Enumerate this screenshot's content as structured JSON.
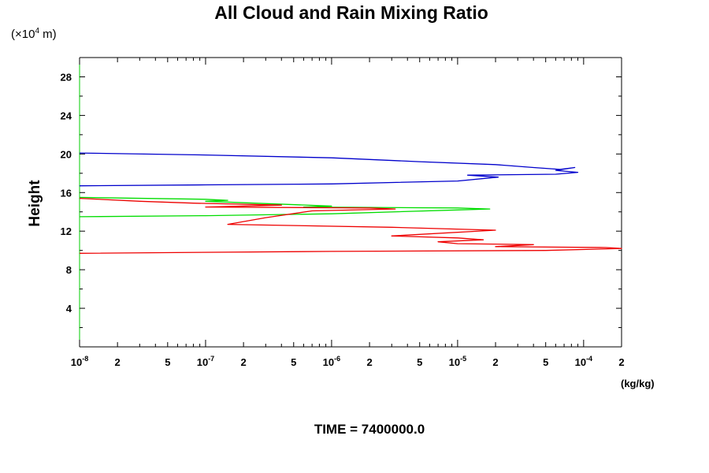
{
  "chart_data": {
    "type": "line",
    "title": "All Cloud and Rain Mixing Ratio",
    "ylabel": "Height",
    "y_unit_prefix": "(×10",
    "y_unit_exp": "4",
    "y_unit_suffix": " m)",
    "xlabel_unit": "(kg/kg)",
    "annotation": "TIME = 7400000.0",
    "x_scale": "log",
    "xlim": [
      1e-08,
      0.0002
    ],
    "ylim": [
      0,
      30
    ],
    "y_ticks": [
      "4",
      "8",
      "12",
      "16",
      "20",
      "24",
      "28"
    ],
    "x_tick_labels": [
      {
        "v": 1e-08,
        "base": "10",
        "exp": "-8"
      },
      {
        "v": 2e-08,
        "base": "2",
        "exp": ""
      },
      {
        "v": 5e-08,
        "base": "5",
        "exp": ""
      },
      {
        "v": 1e-07,
        "base": "10",
        "exp": "-7"
      },
      {
        "v": 2e-07,
        "base": "2",
        "exp": ""
      },
      {
        "v": 5e-07,
        "base": "5",
        "exp": ""
      },
      {
        "v": 1e-06,
        "base": "10",
        "exp": "-6"
      },
      {
        "v": 2e-06,
        "base": "2",
        "exp": ""
      },
      {
        "v": 5e-06,
        "base": "5",
        "exp": ""
      },
      {
        "v": 1e-05,
        "base": "10",
        "exp": "-5"
      },
      {
        "v": 2e-05,
        "base": "2",
        "exp": ""
      },
      {
        "v": 5e-05,
        "base": "5",
        "exp": ""
      },
      {
        "v": 0.0001,
        "base": "10",
        "exp": "-4"
      },
      {
        "v": 0.0002,
        "base": "2",
        "exp": ""
      }
    ],
    "series": [
      {
        "name": "blue profile",
        "color": "#0000cc",
        "points": [
          [
            1e-08,
            20.1
          ],
          [
            1e-07,
            19.9
          ],
          [
            1e-06,
            19.6
          ],
          [
            5e-06,
            19.2
          ],
          [
            2e-05,
            18.9
          ],
          [
            4e-05,
            18.6
          ],
          [
            6.5e-05,
            18.4
          ],
          [
            8.5e-05,
            18.6
          ],
          [
            6e-05,
            18.3
          ],
          [
            9e-05,
            18.1
          ],
          [
            6e-05,
            17.9
          ],
          [
            1.2e-05,
            17.8
          ],
          [
            2.1e-05,
            17.6
          ],
          [
            1e-05,
            17.2
          ],
          [
            1e-06,
            16.9
          ],
          [
            1e-07,
            16.8
          ],
          [
            1e-08,
            16.7
          ]
        ]
      },
      {
        "name": "green profile",
        "color": "#00dd00",
        "points": [
          [
            1e-08,
            15.5
          ],
          [
            1e-07,
            15.3
          ],
          [
            1.5e-07,
            15.2
          ],
          [
            1e-07,
            15.1
          ],
          [
            1e-06,
            14.6
          ],
          [
            6e-07,
            14.5
          ],
          [
            1e-05,
            14.4
          ],
          [
            1.8e-05,
            14.3
          ],
          [
            1e-05,
            14.2
          ],
          [
            1e-06,
            13.8
          ],
          [
            1e-07,
            13.6
          ],
          [
            1e-08,
            13.5
          ]
        ]
      },
      {
        "name": "red profile",
        "color": "#ee0000",
        "points": [
          [
            1e-08,
            15.4
          ],
          [
            3e-08,
            15.1
          ],
          [
            8e-08,
            14.9
          ],
          [
            4e-07,
            14.7
          ],
          [
            1e-07,
            14.5
          ],
          [
            2e-06,
            14.4
          ],
          [
            3.2e-06,
            14.3
          ],
          [
            7e-07,
            14.1
          ],
          [
            3e-07,
            13.4
          ],
          [
            1.5e-07,
            12.7
          ],
          [
            3e-06,
            12.4
          ],
          [
            2e-05,
            12.1
          ],
          [
            3e-06,
            11.5
          ],
          [
            1e-05,
            11.3
          ],
          [
            1.6e-05,
            11.1
          ],
          [
            7e-06,
            10.9
          ],
          [
            1e-05,
            10.7
          ],
          [
            4e-05,
            10.6
          ],
          [
            2e-05,
            10.4
          ],
          [
            0.00015,
            10.3
          ],
          [
            0.0002,
            10.2
          ],
          [
            5e-05,
            10.0
          ],
          [
            1e-06,
            9.9
          ],
          [
            1e-08,
            9.7
          ]
        ]
      }
    ]
  }
}
